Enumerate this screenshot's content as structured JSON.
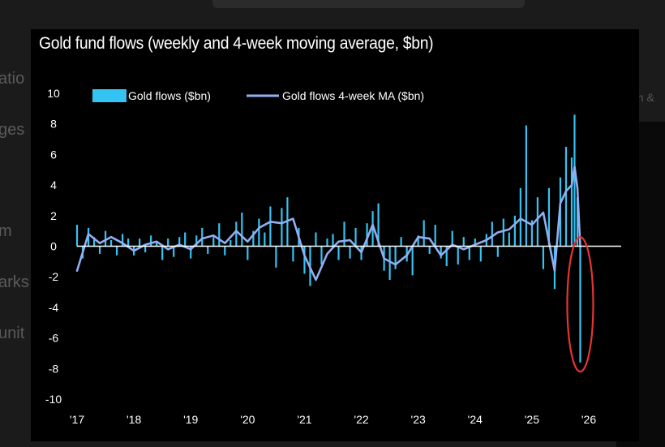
{
  "background": {
    "fragments": [
      "atio",
      "ges",
      "m",
      "arks",
      "unit"
    ],
    "right_fragment": "on &"
  },
  "chart_data": {
    "type": "bar",
    "title": "Gold fund flows (weekly and 4-week moving average, $bn)",
    "xlabel": "",
    "ylabel": "",
    "ylim": [
      -10,
      10
    ],
    "yticks": [
      10,
      8,
      6,
      4,
      2,
      0,
      -2,
      -4,
      -6,
      -8,
      -10
    ],
    "xlim": [
      2017,
      2026
    ],
    "xticks": [
      {
        "label": "'17",
        "x": 2017
      },
      {
        "label": "'18",
        "x": 2018
      },
      {
        "label": "'19",
        "x": 2019
      },
      {
        "label": "'20",
        "x": 2020
      },
      {
        "label": "'21",
        "x": 2021
      },
      {
        "label": "'22",
        "x": 2022
      },
      {
        "label": "'23",
        "x": 2023
      },
      {
        "label": "'24",
        "x": 2024
      },
      {
        "label": "'25",
        "x": 2025
      },
      {
        "label": "'26",
        "x": 2026
      }
    ],
    "legend_position": "top-left",
    "colors": {
      "flows": "#35c3f4",
      "ma": "#93aef0",
      "highlight": "#e43434",
      "zero_line": "#ffffff"
    },
    "series": [
      {
        "name": "Gold flows ($bn)",
        "type": "bar",
        "x": [
          2017.0,
          2017.1,
          2017.2,
          2017.3,
          2017.4,
          2017.5,
          2017.6,
          2017.7,
          2017.8,
          2017.9,
          2018.0,
          2018.1,
          2018.2,
          2018.3,
          2018.4,
          2018.5,
          2018.6,
          2018.7,
          2018.8,
          2018.9,
          2019.0,
          2019.1,
          2019.2,
          2019.3,
          2019.4,
          2019.5,
          2019.6,
          2019.7,
          2019.8,
          2019.9,
          2020.0,
          2020.1,
          2020.2,
          2020.3,
          2020.4,
          2020.5,
          2020.6,
          2020.7,
          2020.8,
          2020.9,
          2021.0,
          2021.1,
          2021.2,
          2021.3,
          2021.4,
          2021.5,
          2021.6,
          2021.7,
          2021.8,
          2021.9,
          2022.0,
          2022.1,
          2022.2,
          2022.3,
          2022.4,
          2022.5,
          2022.6,
          2022.7,
          2022.8,
          2022.9,
          2023.0,
          2023.1,
          2023.2,
          2023.3,
          2023.4,
          2023.5,
          2023.6,
          2023.7,
          2023.8,
          2023.9,
          2024.0,
          2024.1,
          2024.2,
          2024.3,
          2024.4,
          2024.5,
          2024.6,
          2024.7,
          2024.8,
          2024.9,
          2025.0,
          2025.1,
          2025.2,
          2025.3,
          2025.4,
          2025.5,
          2025.6,
          2025.7,
          2025.75,
          2025.8,
          2025.85
        ],
        "values": [
          1.4,
          -0.8,
          1.2,
          0.6,
          -0.5,
          1.0,
          0.4,
          -0.6,
          0.8,
          0.5,
          -0.6,
          0.5,
          -0.4,
          0.7,
          0.3,
          -0.9,
          0.5,
          -0.7,
          0.6,
          0.9,
          -0.8,
          0.7,
          1.2,
          -0.5,
          0.6,
          1.5,
          -0.6,
          0.4,
          1.6,
          2.2,
          -0.9,
          1.0,
          1.8,
          0.9,
          2.6,
          -1.4,
          2.5,
          3.2,
          -1.0,
          1.2,
          -1.8,
          -2.6,
          0.9,
          -1.2,
          0.5,
          0.8,
          -0.9,
          1.6,
          -0.8,
          1.2,
          -0.9,
          1.5,
          2.3,
          2.8,
          -1.6,
          -2.2,
          -1.5,
          0.6,
          -1.0,
          -1.9,
          0.7,
          1.7,
          -0.5,
          1.4,
          -0.8,
          -1.3,
          1.0,
          -1.2,
          0.6,
          -0.9,
          0.5,
          -1.0,
          0.8,
          1.6,
          -0.7,
          1.8,
          0.9,
          2.0,
          3.8,
          7.9,
          1.7,
          3.2,
          -1.5,
          3.8,
          -2.8,
          4.5,
          6.5,
          5.8,
          8.6,
          3.2,
          -7.6
        ]
      },
      {
        "name": "Gold flows 4-week MA ($bn)",
        "type": "line",
        "x": [
          2017.0,
          2017.2,
          2017.4,
          2017.6,
          2017.8,
          2018.0,
          2018.2,
          2018.4,
          2018.6,
          2018.8,
          2019.0,
          2019.2,
          2019.4,
          2019.6,
          2019.8,
          2020.0,
          2020.2,
          2020.4,
          2020.6,
          2020.8,
          2021.0,
          2021.2,
          2021.4,
          2021.6,
          2021.8,
          2022.0,
          2022.2,
          2022.4,
          2022.6,
          2022.8,
          2023.0,
          2023.2,
          2023.4,
          2023.6,
          2023.8,
          2024.0,
          2024.2,
          2024.4,
          2024.6,
          2024.8,
          2025.0,
          2025.2,
          2025.4,
          2025.5,
          2025.6,
          2025.7,
          2025.75,
          2025.8,
          2025.85
        ],
        "values": [
          -1.6,
          0.8,
          0.2,
          0.6,
          0.2,
          -0.3,
          0.1,
          0.3,
          -0.2,
          0.1,
          -0.2,
          0.5,
          0.7,
          0.2,
          1.0,
          0.3,
          1.2,
          1.6,
          1.5,
          1.8,
          -0.6,
          -2.2,
          -0.5,
          0.3,
          0.4,
          -0.4,
          1.4,
          -0.8,
          -1.2,
          -0.6,
          0.6,
          0.5,
          -0.6,
          0.1,
          -0.2,
          0.1,
          0.4,
          0.9,
          1.1,
          1.8,
          1.4,
          2.2,
          -1.6,
          2.8,
          3.6,
          4.0,
          5.2,
          3.8,
          0.0
        ]
      }
    ]
  }
}
